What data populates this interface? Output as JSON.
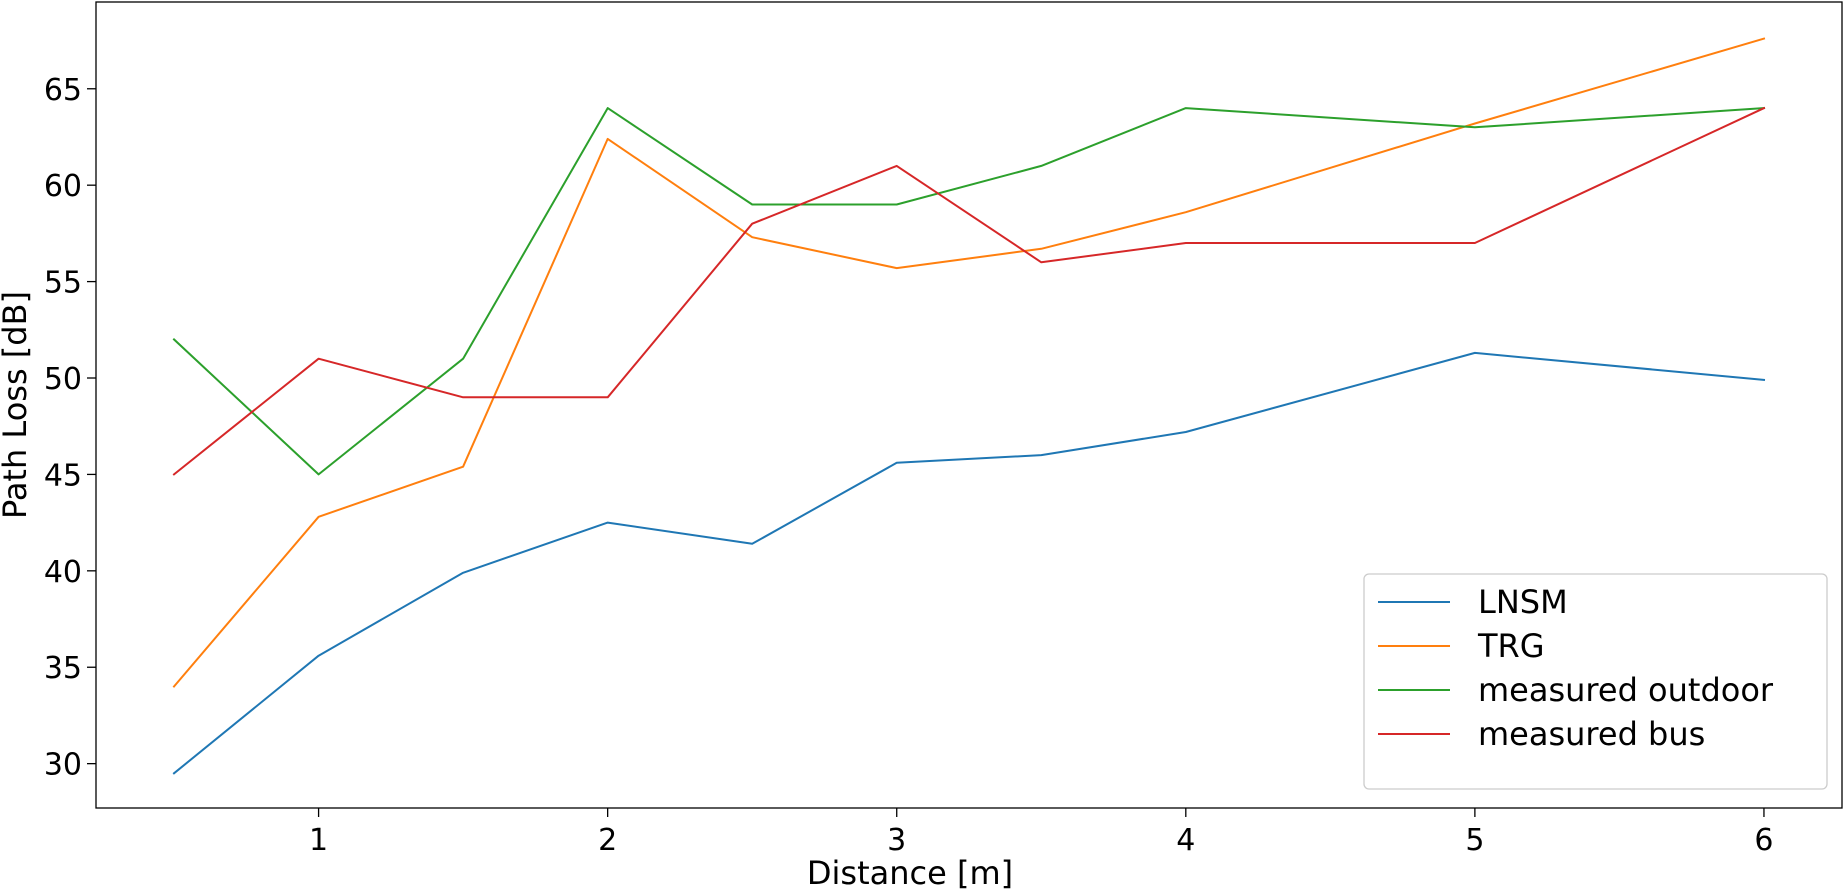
{
  "chart_data": {
    "type": "line",
    "title": "",
    "xlabel": "Distance [m]",
    "ylabel": "Path Loss [dB]",
    "xlim": [
      0.23,
      6.27
    ],
    "ylim": [
      27.7,
      69.5
    ],
    "xticks": [
      1,
      2,
      3,
      4,
      5,
      6
    ],
    "yticks": [
      30,
      35,
      40,
      45,
      50,
      55,
      60,
      65
    ],
    "grid": false,
    "legend_position": "lower-right",
    "x": [
      0.5,
      1,
      1.5,
      2,
      2.5,
      3,
      3.5,
      4,
      5,
      6
    ],
    "series": [
      {
        "name": "LNSM",
        "color": "#1f77b4",
        "values": [
          29.5,
          35.6,
          39.9,
          42.5,
          41.4,
          45.6,
          46.0,
          47.2,
          51.3,
          49.9
        ]
      },
      {
        "name": "TRG",
        "color": "#ff7f0e",
        "values": [
          34.0,
          42.8,
          45.4,
          62.4,
          57.3,
          55.7,
          56.7,
          58.6,
          63.2,
          67.6
        ]
      },
      {
        "name": "measured outdoor",
        "color": "#2ca02c",
        "values": [
          52.0,
          45.0,
          51.0,
          64.0,
          59.0,
          59.0,
          61.0,
          64.0,
          63.0,
          64.0
        ]
      },
      {
        "name": "measured bus",
        "color": "#d62728",
        "values": [
          45.0,
          51.0,
          49.0,
          49.0,
          58.0,
          61.0,
          56.0,
          57.0,
          57.0,
          64.0
        ]
      }
    ]
  }
}
